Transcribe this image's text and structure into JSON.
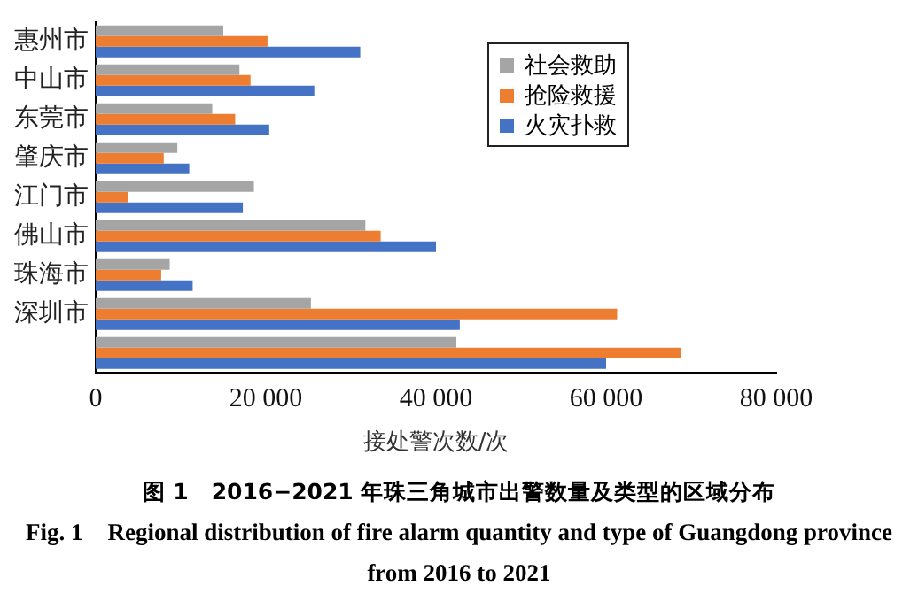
{
  "chart_data": {
    "type": "bar",
    "orientation": "horizontal",
    "categories": [
      "惠州市",
      "中山市",
      "东莞市",
      "肇庆市",
      "江门市",
      "佛山市",
      "珠海市",
      "深圳市",
      null
    ],
    "series": [
      {
        "name": "社会救助",
        "color": "#a5a5a5",
        "values": [
          15000,
          16900,
          13700,
          9600,
          18600,
          31700,
          8700,
          25300,
          42400
        ]
      },
      {
        "name": "抢险救援",
        "color": "#ed7d31",
        "values": [
          20200,
          18200,
          16400,
          8000,
          3800,
          33500,
          7700,
          61300,
          68800
        ]
      },
      {
        "name": "火灾扑救",
        "color": "#4472c4",
        "values": [
          31100,
          25700,
          20400,
          11000,
          17300,
          40000,
          11400,
          42800,
          60000
        ]
      }
    ],
    "xlim": [
      0,
      80000
    ],
    "xticks": [
      0,
      {
        "value": 20000,
        "label": "20 000"
      },
      {
        "value": 40000,
        "label": "40 000"
      },
      {
        "value": 60000,
        "label": "60 000"
      },
      {
        "value": 80000,
        "label": "80 000"
      }
    ],
    "xlabel": "接处警次数/次",
    "grid": false,
    "legend": "right",
    "annotations": [
      "图 1　2016−2021 年珠三角城市出警数量及类型的区域分布",
      "Fig. 1　Regional distribution of fire alarm quantity and type of Guangdong province from 2016 to 2021"
    ]
  }
}
